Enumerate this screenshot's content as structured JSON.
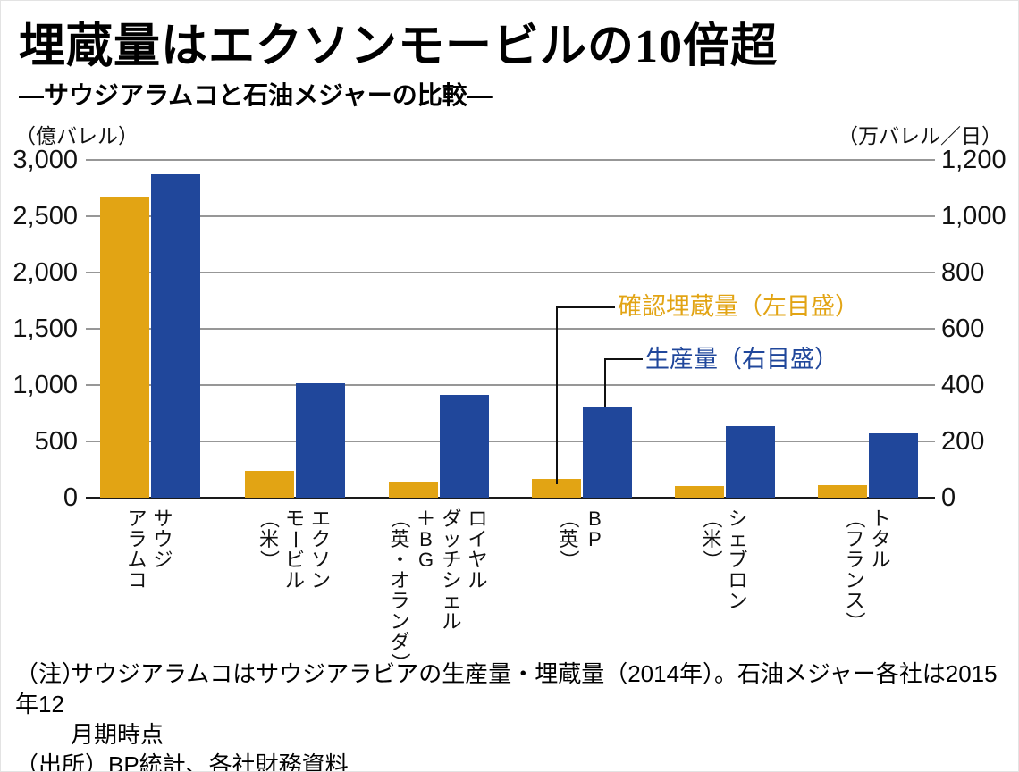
{
  "title": "埋蔵量はエクソンモービルの10倍超",
  "subtitle": "―サウジアラムコと石油メジャーの比較―",
  "left_axis": {
    "unit": "（億バレル）",
    "tick_labels": [
      "3,000",
      "2,500",
      "2,000",
      "1,500",
      "1,000",
      "500",
      "0"
    ],
    "ylim": [
      0,
      3000
    ]
  },
  "right_axis": {
    "unit": "（万バレル／日）",
    "tick_labels": [
      "1,200",
      "1,000",
      "800",
      "600",
      "400",
      "200",
      "0"
    ],
    "ylim": [
      0,
      1200
    ]
  },
  "legend": {
    "reserves_label": "確認埋蔵量（左目盛）",
    "production_label": "生産量（右目盛）"
  },
  "colors": {
    "reserves_orange": "#E2A414",
    "production_blue": "#20479B",
    "gridline_gray": "#979797",
    "baseline_black": "#1a1a1a",
    "callout_black": "#111111"
  },
  "chart_data": {
    "type": "bar",
    "title": "埋蔵量はエクソンモービルの10倍超",
    "subtitle": "―サウジアラムコと石油メジャーの比較―",
    "categories": [
      "サウジアラムコ",
      "エクソンモービル（米）",
      "ロイヤルダッチシェル＋BG（英・オランダ）",
      "BP（英）",
      "シェブロン（米）",
      "トタル（フランス）"
    ],
    "category_columns": [
      [
        "サウジ",
        "アラムコ"
      ],
      [
        "エクソン",
        "モービル",
        "（米）"
      ],
      [
        "ロイヤル",
        "ダッチシェル",
        "＋BG",
        "（英・オランダ）"
      ],
      [
        "BP",
        "（英）"
      ],
      [
        "シェブロン",
        "（米）"
      ],
      [
        "トタル",
        "（フランス）"
      ]
    ],
    "series": [
      {
        "name": "確認埋蔵量（左目盛）",
        "axis": "left",
        "unit": "億バレル",
        "color": "#E2A414",
        "values": [
          2670,
          240,
          140,
          170,
          105,
          110
        ]
      },
      {
        "name": "生産量（右目盛）",
        "axis": "right",
        "unit": "万バレル／日",
        "color": "#20479B",
        "values": [
          1150,
          405,
          365,
          325,
          255,
          230
        ]
      }
    ],
    "left_ylim": [
      0,
      3000
    ],
    "right_ylim": [
      0,
      1200
    ],
    "grid": true,
    "legend_position": "inside-right-of-BP-bars"
  },
  "note": {
    "prefix": "（注）",
    "line1": "サウジアラムコはサウジアラビアの生産量・埋蔵量（2014年）。石油メジャー各社は2015年12",
    "line2": "月期時点"
  },
  "source": "（出所）BP統計、各社財務資料"
}
